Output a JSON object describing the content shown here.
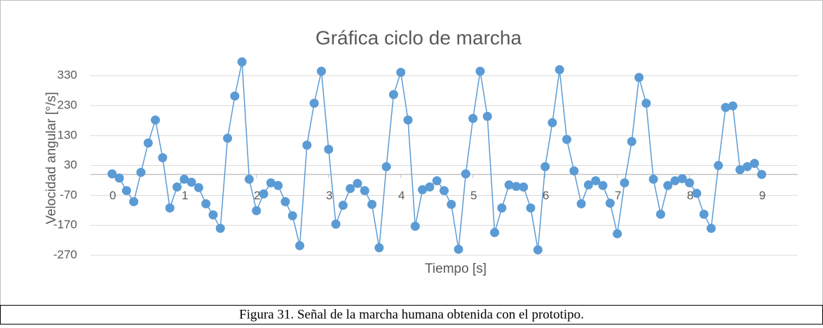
{
  "chart_data": {
    "type": "line",
    "title": "Gráfica ciclo de marcha",
    "x_label": "Tiempo [s]",
    "y_label": "Velocidad angular [°/s]",
    "caption": "Figura 31. Señal de la marcha humana obtenida con el prototipo.",
    "x": [
      0,
      0.1,
      0.2,
      0.3,
      0.4,
      0.5,
      0.6,
      0.7,
      0.8,
      0.9,
      1,
      1.1,
      1.2,
      1.3,
      1.4,
      1.5,
      1.6,
      1.7,
      1.8,
      1.9,
      2,
      2.1,
      2.2,
      2.3,
      2.4,
      2.5,
      2.6,
      2.7,
      2.8,
      2.9,
      3,
      3.1,
      3.2,
      3.3,
      3.4,
      3.5,
      3.6,
      3.7,
      3.8,
      3.9,
      4,
      4.1,
      4.2,
      4.3,
      4.4,
      4.5,
      4.6,
      4.7,
      4.8,
      4.9,
      5,
      5.1,
      5.2,
      5.3,
      5.4,
      5.5,
      5.6,
      5.7,
      5.8,
      5.9,
      6,
      6.1,
      6.2,
      6.3,
      6.4,
      6.5,
      6.6,
      6.7,
      6.8,
      6.9,
      7,
      7.1,
      7.2,
      7.3,
      7.4,
      7.5,
      7.6,
      7.7,
      7.8,
      7.9,
      8,
      8.1,
      8.2,
      8.3,
      8.4,
      8.5,
      8.6,
      8.7,
      8.8,
      8.9,
      9
    ],
    "series": [
      {
        "name": "Velocidad angular",
        "color": "#5b9bd5",
        "values": [
          2,
          -12,
          -54,
          -91,
          7,
          105,
          182,
          56,
          -112,
          -42,
          -16,
          -26,
          -44,
          -98,
          -135,
          -180,
          121,
          262,
          376,
          -16,
          -121,
          -65,
          -28,
          -37,
          -91,
          -138,
          -238,
          98,
          238,
          345,
          84,
          -166,
          -103,
          -47,
          -30,
          -54,
          -100,
          -245,
          26,
          267,
          341,
          182,
          -173,
          -51,
          -42,
          -21,
          -54,
          -100,
          -250,
          2,
          187,
          345,
          194,
          -194,
          -112,
          -35,
          -40,
          -42,
          -112,
          -252,
          26,
          173,
          350,
          117,
          12,
          -98,
          -35,
          -21,
          -37,
          -96,
          -198,
          -28,
          110,
          324,
          238,
          -16,
          -133,
          -37,
          -21,
          -14,
          -28,
          -63,
          -133,
          -180,
          30,
          224,
          229,
          16,
          26,
          37,
          0
        ]
      }
    ],
    "xlim": [
      -0.3,
      9.5
    ],
    "xticks": [
      0,
      1,
      2,
      3,
      4,
      5,
      6,
      7,
      8,
      9
    ],
    "ylim": [
      -270,
      385
    ],
    "yticks": [
      -270,
      -170,
      -70,
      30,
      130,
      230,
      330
    ],
    "grid": true
  }
}
